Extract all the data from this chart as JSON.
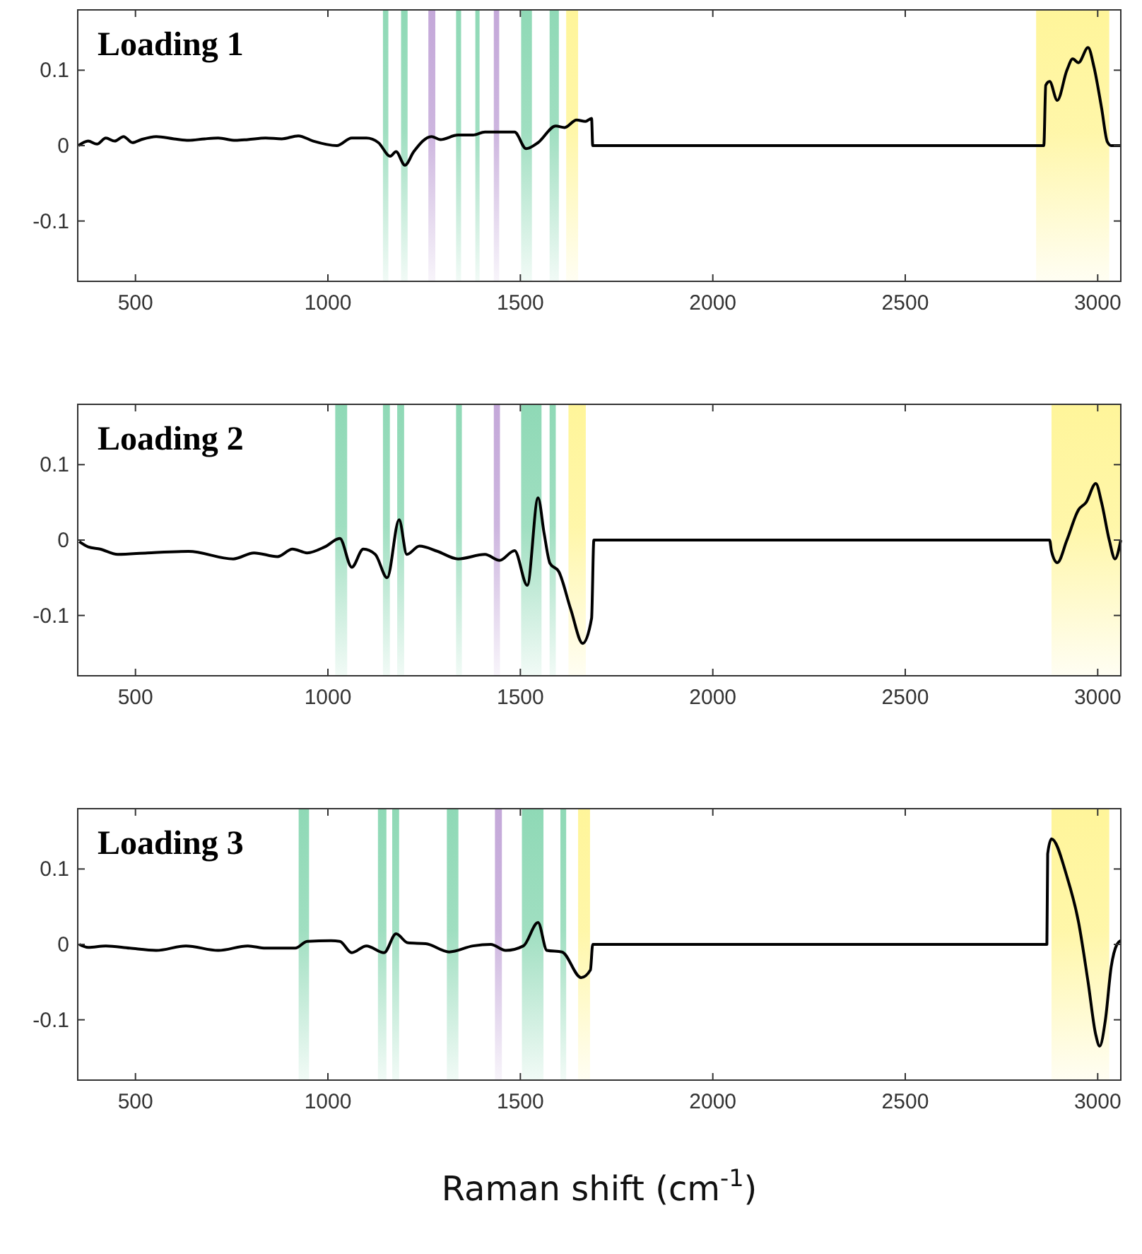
{
  "chart_data": [
    {
      "type": "line",
      "title": "Loading 1",
      "xlim": [
        350,
        3060
      ],
      "ylim": [
        -0.18,
        0.18
      ],
      "xticks": [
        500,
        1000,
        1500,
        2000,
        2500,
        3000
      ],
      "yticks": [
        -0.1,
        0,
        0.1
      ],
      "grid": false,
      "x": [
        352,
        377,
        400,
        423,
        446,
        469,
        492,
        515,
        554,
        600,
        638,
        680,
        715,
        760,
        792,
        838,
        880,
        923,
        962,
        1023,
        1062,
        1100,
        1131,
        1162,
        1177,
        1200,
        1223,
        1269,
        1292,
        1338,
        1377,
        1408,
        1454,
        1485,
        1515,
        1546,
        1592,
        1615,
        1646,
        1669,
        1685,
        1688,
        2860,
        2865,
        2875,
        2895,
        2920,
        2935,
        2950,
        2975,
        2990,
        3010,
        3025,
        3035,
        3060
      ],
      "series": [
        {
          "color": "#000000",
          "values": [
            0,
            0.006,
            0.002,
            0.01,
            0.006,
            0.012,
            0.004,
            0.008,
            0.012,
            0.009,
            0.007,
            0.009,
            0.01,
            0.007,
            0.008,
            0.01,
            0.009,
            0.013,
            0.006,
            0,
            0.01,
            0.01,
            0.004,
            -0.014,
            -0.008,
            -0.026,
            -0.008,
            0.012,
            0.008,
            0.014,
            0.014,
            0.018,
            0.018,
            0.018,
            -0.004,
            0.004,
            0.026,
            0.024,
            0.034,
            0.032,
            0.036,
            0,
            0,
            0.08,
            0.085,
            0.06,
            0.1,
            0.115,
            0.11,
            0.13,
            0.105,
            0.05,
            0.005,
            0,
            0
          ]
        }
      ],
      "bands": [
        {
          "axis": "x",
          "from": 1143,
          "to": 1157,
          "color": "#8fd9b6"
        },
        {
          "axis": "x",
          "from": 1190,
          "to": 1207,
          "color": "#8fd9b6"
        },
        {
          "axis": "x",
          "from": 1261,
          "to": 1279,
          "color": "#c4a8d9"
        },
        {
          "axis": "x",
          "from": 1333,
          "to": 1346,
          "color": "#8fd9b6"
        },
        {
          "axis": "x",
          "from": 1383,
          "to": 1394,
          "color": "#8fd9b6"
        },
        {
          "axis": "x",
          "from": 1431,
          "to": 1445,
          "color": "#c4a8d9"
        },
        {
          "axis": "x",
          "from": 1502,
          "to": 1530,
          "color": "#8fd9b6"
        },
        {
          "axis": "x",
          "from": 1576,
          "to": 1600,
          "color": "#8fd9b6"
        },
        {
          "axis": "x",
          "from": 1619,
          "to": 1650,
          "color": "#fff59a"
        },
        {
          "axis": "x",
          "from": 2840,
          "to": 3030,
          "color": "#fff59a"
        }
      ]
    },
    {
      "type": "line",
      "title": "Loading 2",
      "xlim": [
        350,
        3060
      ],
      "ylim": [
        -0.18,
        0.18
      ],
      "xticks": [
        500,
        1000,
        1500,
        2000,
        2500,
        3000
      ],
      "yticks": [
        -0.1,
        0,
        0.1
      ],
      "grid": false,
      "x": [
        354,
        377,
        408,
        454,
        531,
        638,
        754,
        808,
        869,
        908,
        946,
        992,
        1031,
        1062,
        1092,
        1123,
        1154,
        1185,
        1205,
        1238,
        1285,
        1338,
        1408,
        1446,
        1485,
        1518,
        1546,
        1562,
        1577,
        1600,
        1631,
        1662,
        1685,
        1691,
        2875,
        2880,
        2895,
        2920,
        2950,
        2970,
        2995,
        3010,
        3030,
        3045,
        3060
      ],
      "series": [
        {
          "color": "#000000",
          "values": [
            -0.002,
            -0.009,
            -0.012,
            -0.019,
            -0.017,
            -0.015,
            -0.025,
            -0.017,
            -0.022,
            -0.012,
            -0.017,
            -0.009,
            0.002,
            -0.036,
            -0.012,
            -0.019,
            -0.05,
            0.027,
            -0.019,
            -0.008,
            -0.015,
            -0.025,
            -0.019,
            -0.027,
            -0.014,
            -0.06,
            0.056,
            0.008,
            -0.031,
            -0.042,
            -0.092,
            -0.137,
            -0.104,
            0,
            0,
            -0.015,
            -0.03,
            0,
            0.04,
            0.05,
            0.075,
            0.05,
            0,
            -0.025,
            0
          ]
        }
      ],
      "bands": [
        {
          "axis": "x",
          "from": 1019,
          "to": 1050,
          "color": "#8fd9b6"
        },
        {
          "axis": "x",
          "from": 1143,
          "to": 1161,
          "color": "#8fd9b6"
        },
        {
          "axis": "x",
          "from": 1180,
          "to": 1198,
          "color": "#8fd9b6"
        },
        {
          "axis": "x",
          "from": 1333,
          "to": 1348,
          "color": "#8fd9b6"
        },
        {
          "axis": "x",
          "from": 1431,
          "to": 1447,
          "color": "#c4a8d9"
        },
        {
          "axis": "x",
          "from": 1502,
          "to": 1555,
          "color": "#8fd9b6"
        },
        {
          "axis": "x",
          "from": 1576,
          "to": 1592,
          "color": "#8fd9b6"
        },
        {
          "axis": "x",
          "from": 1625,
          "to": 1670,
          "color": "#fff59a"
        },
        {
          "axis": "x",
          "from": 2880,
          "to": 3060,
          "color": "#fff59a"
        }
      ]
    },
    {
      "type": "line",
      "title": "Loading 3",
      "xlabel": "Raman shift (cm$^{-1}$)",
      "xlim": [
        350,
        3060
      ],
      "ylim": [
        -0.18,
        0.18
      ],
      "xticks": [
        500,
        1000,
        1500,
        2000,
        2500,
        3000
      ],
      "yticks": [
        -0.1,
        0,
        0.1
      ],
      "grid": false,
      "x": [
        354,
        377,
        423,
        485,
        554,
        631,
        715,
        792,
        838,
        915,
        946,
        1008,
        1031,
        1062,
        1100,
        1146,
        1177,
        1208,
        1254,
        1315,
        1377,
        1423,
        1462,
        1508,
        1546,
        1569,
        1608,
        1658,
        1682,
        1688,
        2868,
        2870,
        2880,
        2920,
        2950,
        2975,
        2995,
        3005,
        3020,
        3035,
        3050,
        3060
      ],
      "series": [
        {
          "color": "#000000",
          "values": [
            0,
            -0.004,
            -0.002,
            -0.005,
            -0.008,
            -0.002,
            -0.008,
            -0.002,
            -0.005,
            -0.005,
            0.004,
            0.005,
            0.004,
            -0.011,
            -0.002,
            -0.011,
            0.014,
            0.002,
            0.001,
            -0.01,
            -0.002,
            0,
            -0.008,
            -0.002,
            0.029,
            -0.008,
            -0.01,
            -0.044,
            -0.034,
            0,
            0,
            0.12,
            0.14,
            0.09,
            0.03,
            -0.05,
            -0.12,
            -0.135,
            -0.1,
            -0.03,
            0,
            0.005
          ]
        }
      ],
      "bands": [
        {
          "axis": "x",
          "from": 924,
          "to": 951,
          "color": "#8fd9b6"
        },
        {
          "axis": "x",
          "from": 1130,
          "to": 1152,
          "color": "#8fd9b6"
        },
        {
          "axis": "x",
          "from": 1167,
          "to": 1185,
          "color": "#8fd9b6"
        },
        {
          "axis": "x",
          "from": 1309,
          "to": 1339,
          "color": "#8fd9b6"
        },
        {
          "axis": "x",
          "from": 1434,
          "to": 1452,
          "color": "#c4a8d9"
        },
        {
          "axis": "x",
          "from": 1504,
          "to": 1560,
          "color": "#8fd9b6"
        },
        {
          "axis": "x",
          "from": 1604,
          "to": 1619,
          "color": "#8fd9b6"
        },
        {
          "axis": "x",
          "from": 1650,
          "to": 1681,
          "color": "#fff59a"
        },
        {
          "axis": "x",
          "from": 2880,
          "to": 3030,
          "color": "#fff59a"
        }
      ]
    }
  ]
}
